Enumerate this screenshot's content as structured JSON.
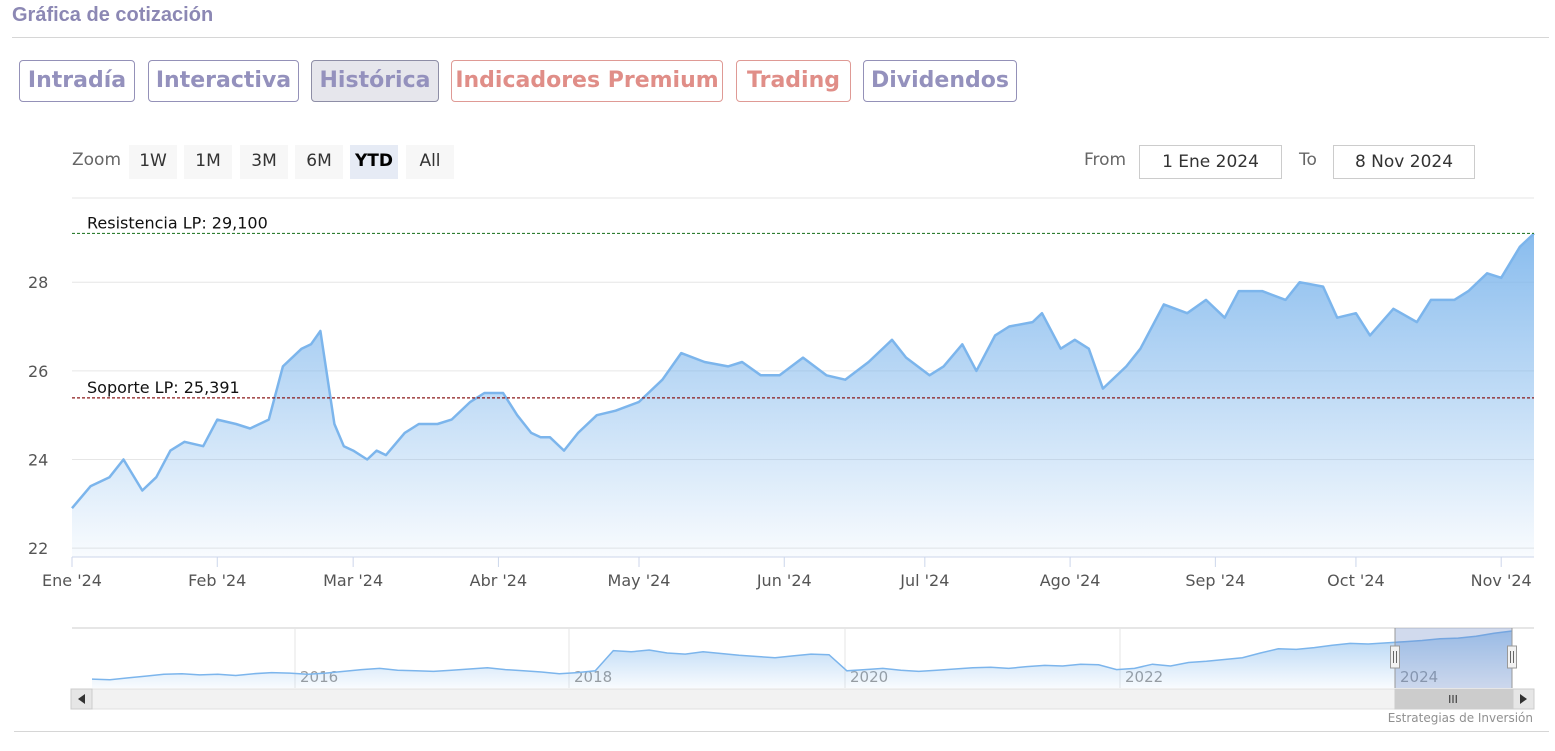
{
  "header": {
    "title": "Gráfica de cotización"
  },
  "tabs": [
    {
      "label": "Intradía",
      "color": "purple",
      "active": false
    },
    {
      "label": "Interactiva",
      "color": "purple",
      "active": false
    },
    {
      "label": "Histórica",
      "color": "purple",
      "active": true
    },
    {
      "label": "Indicadores Premium",
      "color": "red",
      "active": false
    },
    {
      "label": "Trading",
      "color": "red",
      "active": false
    },
    {
      "label": "Dividendos",
      "color": "purple",
      "active": false
    }
  ],
  "zoom": {
    "label": "Zoom",
    "buttons": [
      "1W",
      "1M",
      "3M",
      "6M",
      "YTD",
      "All"
    ],
    "selected": "YTD"
  },
  "range": {
    "from_label": "From",
    "from_value": "1 Ene 2024",
    "to_label": "To",
    "to_value": "8 Nov 2024"
  },
  "colors": {
    "line": "#7cb5ec",
    "resistance": "#2e7d32",
    "support": "#8b1a1a",
    "accent_purple": "#9491bd",
    "accent_red": "#e08e88"
  },
  "chart_data": {
    "type": "area",
    "title": "",
    "xlabel": "",
    "ylabel": "",
    "ylim": [
      21.8,
      29.9
    ],
    "y_ticks": [
      22,
      24,
      26,
      28
    ],
    "x_ticks": [
      "Ene '24",
      "Feb '24",
      "Mar '24",
      "Abr '24",
      "May '24",
      "Jun '24",
      "Jul '24",
      "Ago '24",
      "Sep '24",
      "Oct '24",
      "Nov '24"
    ],
    "x_range": [
      "2024-01-01",
      "2024-11-08"
    ],
    "grid": true,
    "lines": [
      {
        "label": "Resistencia LP: 29,100",
        "value": 29.1
      },
      {
        "label": "Soporte LP: 25,391",
        "value": 25.391
      }
    ],
    "series": [
      {
        "x": [
          "2024-01-01",
          "2024-01-05",
          "2024-01-09",
          "2024-01-12",
          "2024-01-16",
          "2024-01-19",
          "2024-01-22",
          "2024-01-25",
          "2024-01-29",
          "2024-02-01",
          "2024-02-05",
          "2024-02-08",
          "2024-02-12",
          "2024-02-15",
          "2024-02-19",
          "2024-02-21",
          "2024-02-23",
          "2024-02-26",
          "2024-02-28",
          "2024-03-01",
          "2024-03-04",
          "2024-03-06",
          "2024-03-08",
          "2024-03-12",
          "2024-03-15",
          "2024-03-19",
          "2024-03-22",
          "2024-03-26",
          "2024-03-29",
          "2024-04-02",
          "2024-04-05",
          "2024-04-08",
          "2024-04-10",
          "2024-04-12",
          "2024-04-15",
          "2024-04-18",
          "2024-04-22",
          "2024-04-26",
          "2024-05-01",
          "2024-05-06",
          "2024-05-10",
          "2024-05-15",
          "2024-05-20",
          "2024-05-23",
          "2024-05-27",
          "2024-05-31",
          "2024-06-05",
          "2024-06-10",
          "2024-06-14",
          "2024-06-19",
          "2024-06-24",
          "2024-06-27",
          "2024-07-02",
          "2024-07-05",
          "2024-07-09",
          "2024-07-12",
          "2024-07-16",
          "2024-07-19",
          "2024-07-24",
          "2024-07-26",
          "2024-07-30",
          "2024-08-02",
          "2024-08-05",
          "2024-08-08",
          "2024-08-13",
          "2024-08-16",
          "2024-08-21",
          "2024-08-26",
          "2024-08-30",
          "2024-09-03",
          "2024-09-06",
          "2024-09-11",
          "2024-09-16",
          "2024-09-19",
          "2024-09-24",
          "2024-09-27",
          "2024-10-01",
          "2024-10-04",
          "2024-10-09",
          "2024-10-14",
          "2024-10-17",
          "2024-10-22",
          "2024-10-25",
          "2024-10-29",
          "2024-11-01",
          "2024-11-05",
          "2024-11-08"
        ],
        "values": [
          22.9,
          23.4,
          23.6,
          24.0,
          23.3,
          23.6,
          24.2,
          24.4,
          24.3,
          24.9,
          24.8,
          24.7,
          24.9,
          26.1,
          26.5,
          26.6,
          26.9,
          24.8,
          24.3,
          24.2,
          24.0,
          24.2,
          24.1,
          24.6,
          24.8,
          24.8,
          24.9,
          25.3,
          25.5,
          25.5,
          25.0,
          24.6,
          24.5,
          24.5,
          24.2,
          24.6,
          25.0,
          25.1,
          25.3,
          25.8,
          26.4,
          26.2,
          26.1,
          26.2,
          25.9,
          25.9,
          26.3,
          25.9,
          25.8,
          26.2,
          26.7,
          26.3,
          25.9,
          26.1,
          26.6,
          26.0,
          26.8,
          27.0,
          27.1,
          27.3,
          26.5,
          26.7,
          26.5,
          25.6,
          26.1,
          26.5,
          27.5,
          27.3,
          27.6,
          27.2,
          27.8,
          27.8,
          27.6,
          28.0,
          27.9,
          27.2,
          27.3,
          26.8,
          27.4,
          27.1,
          27.6,
          27.6,
          27.8,
          28.2,
          28.1,
          28.8,
          29.1
        ]
      }
    ],
    "navigator": {
      "x_labels": [
        "2016",
        "2018",
        "2020",
        "2022",
        "2024"
      ],
      "values": [
        21.0,
        20.9,
        21.2,
        21.5,
        21.8,
        21.9,
        21.7,
        21.8,
        21.6,
        21.9,
        22.1,
        22.0,
        21.8,
        22.0,
        22.3,
        22.6,
        22.8,
        22.5,
        22.4,
        22.3,
        22.5,
        22.7,
        22.9,
        22.6,
        22.4,
        22.2,
        21.9,
        22.1,
        22.4,
        25.8,
        25.6,
        25.9,
        25.4,
        25.2,
        25.6,
        25.3,
        25.0,
        24.8,
        24.6,
        24.9,
        25.2,
        25.1,
        22.4,
        22.6,
        22.8,
        22.5,
        22.3,
        22.5,
        22.7,
        22.9,
        23.0,
        22.8,
        23.1,
        23.3,
        23.2,
        23.5,
        23.4,
        22.6,
        22.8,
        23.5,
        23.2,
        23.8,
        24.0,
        24.3,
        24.6,
        25.4,
        26.1,
        26.0,
        26.3,
        26.7,
        27.0,
        26.9,
        27.1,
        27.3,
        27.5,
        27.8,
        27.9,
        28.2,
        28.7,
        29.1
      ]
    }
  },
  "scrollbar": {
    "grip": "III"
  },
  "credit": "Estrategias de Inversión"
}
